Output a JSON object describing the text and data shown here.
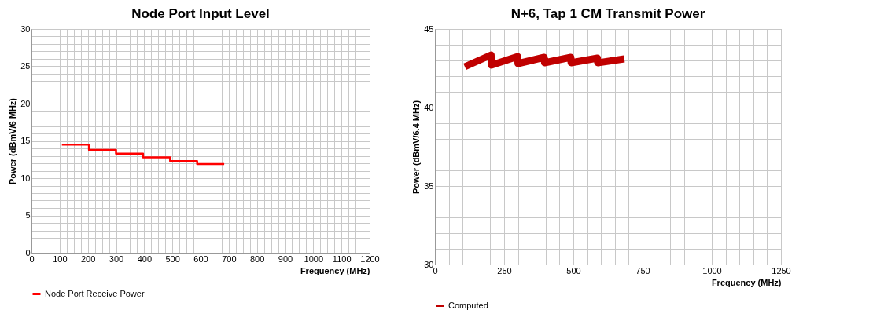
{
  "chart_data": [
    {
      "type": "step",
      "title": "Node Port Input Level",
      "xlabel": "Frequency (MHz)",
      "ylabel": "Power (dBmV/6 MHz)",
      "x": [
        108,
        204,
        300,
        396,
        492,
        588,
        684
      ],
      "series": [
        {
          "name": "Node Port Receive Power",
          "color": "#ff0000",
          "values": [
            14.5,
            13.8,
            13.3,
            12.8,
            12.3,
            11.9,
            11.9
          ]
        }
      ],
      "xlim": [
        0,
        1200
      ],
      "ylim": [
        0,
        30
      ],
      "xticks": [
        0,
        {
          "value": 25,
          "label": null
        },
        {
          "value": 50,
          "label": null
        },
        {
          "value": 75,
          "label": null
        },
        100,
        {
          "value": 125,
          "label": null
        },
        {
          "value": 150,
          "label": null
        },
        {
          "value": 175,
          "label": null
        },
        200,
        {
          "value": 225,
          "label": null
        },
        {
          "value": 250,
          "label": null
        },
        {
          "value": 275,
          "label": null
        },
        300,
        {
          "value": 325,
          "label": null
        },
        {
          "value": 350,
          "label": null
        },
        {
          "value": 375,
          "label": null
        },
        400,
        {
          "value": 425,
          "label": null
        },
        {
          "value": 450,
          "label": null
        },
        {
          "value": 475,
          "label": null
        },
        500,
        {
          "value": 525,
          "label": null
        },
        {
          "value": 550,
          "label": null
        },
        {
          "value": 575,
          "label": null
        },
        600,
        {
          "value": 625,
          "label": null
        },
        {
          "value": 650,
          "label": null
        },
        {
          "value": 675,
          "label": null
        },
        700,
        {
          "value": 725,
          "label": null
        },
        {
          "value": 750,
          "label": null
        },
        {
          "value": 775,
          "label": null
        },
        800,
        {
          "value": 825,
          "label": null
        },
        {
          "value": 850,
          "label": null
        },
        {
          "value": 875,
          "label": null
        },
        900,
        {
          "value": 925,
          "label": null
        },
        {
          "value": 950,
          "label": null
        },
        {
          "value": 975,
          "label": null
        },
        1000,
        {
          "value": 1025,
          "label": null
        },
        {
          "value": 1050,
          "label": null
        },
        {
          "value": 1075,
          "label": null
        },
        1100,
        {
          "value": 1125,
          "label": null
        },
        {
          "value": 1150,
          "label": null
        },
        {
          "value": 1175,
          "label": null
        },
        1200
      ],
      "yticks": [
        0,
        {
          "value": 1,
          "label": null
        },
        {
          "value": 2,
          "label": null
        },
        {
          "value": 3,
          "label": null
        },
        {
          "value": 4,
          "label": null
        },
        5,
        {
          "value": 6,
          "label": null
        },
        {
          "value": 7,
          "label": null
        },
        {
          "value": 8,
          "label": null
        },
        {
          "value": 9,
          "label": null
        },
        10,
        {
          "value": 11,
          "label": null
        },
        {
          "value": 12,
          "label": null
        },
        {
          "value": 13,
          "label": null
        },
        {
          "value": 14,
          "label": null
        },
        15,
        {
          "value": 16,
          "label": null
        },
        {
          "value": 17,
          "label": null
        },
        {
          "value": 18,
          "label": null
        },
        {
          "value": 19,
          "label": null
        },
        20,
        {
          "value": 21,
          "label": null
        },
        {
          "value": 22,
          "label": null
        },
        {
          "value": 23,
          "label": null
        },
        {
          "value": 24,
          "label": null
        },
        25,
        {
          "value": 26,
          "label": null
        },
        {
          "value": 27,
          "label": null
        },
        {
          "value": 28,
          "label": null
        },
        {
          "value": 29,
          "label": null
        },
        30
      ],
      "grid": true,
      "legend": "bottom"
    },
    {
      "type": "line",
      "title": "N+6, Tap 1 CM Transmit Power",
      "xlabel": "Frequency (MHz)",
      "ylabel": "Power (dBmV/6.4 MHz)",
      "x": [
        108,
        203,
        204,
        299,
        300,
        395,
        396,
        491,
        492,
        587,
        588,
        684
      ],
      "series": [
        {
          "name": "Computed",
          "color": "#c00000",
          "values": [
            42.6,
            43.35,
            42.7,
            43.25,
            42.8,
            43.2,
            42.85,
            43.2,
            42.85,
            43.15,
            42.85,
            43.1
          ]
        }
      ],
      "xlim": [
        0,
        1250
      ],
      "ylim": [
        30,
        45
      ],
      "xticks": [
        0,
        {
          "value": 50,
          "label": null
        },
        {
          "value": 100,
          "label": null
        },
        {
          "value": 150,
          "label": null
        },
        {
          "value": 200,
          "label": null
        },
        250,
        {
          "value": 300,
          "label": null
        },
        {
          "value": 350,
          "label": null
        },
        {
          "value": 400,
          "label": null
        },
        {
          "value": 450,
          "label": null
        },
        500,
        {
          "value": 550,
          "label": null
        },
        {
          "value": 600,
          "label": null
        },
        {
          "value": 650,
          "label": null
        },
        {
          "value": 700,
          "label": null
        },
        750,
        {
          "value": 800,
          "label": null
        },
        {
          "value": 850,
          "label": null
        },
        {
          "value": 900,
          "label": null
        },
        {
          "value": 950,
          "label": null
        },
        1000,
        {
          "value": 1050,
          "label": null
        },
        {
          "value": 1100,
          "label": null
        },
        {
          "value": 1150,
          "label": null
        },
        {
          "value": 1200,
          "label": null
        },
        1250
      ],
      "yticks": [
        30,
        {
          "value": 31,
          "label": null
        },
        {
          "value": 32,
          "label": null
        },
        {
          "value": 33,
          "label": null
        },
        {
          "value": 34,
          "label": null
        },
        35,
        {
          "value": 36,
          "label": null
        },
        {
          "value": 37,
          "label": null
        },
        {
          "value": 38,
          "label": null
        },
        {
          "value": 39,
          "label": null
        },
        40,
        {
          "value": 41,
          "label": null
        },
        {
          "value": 42,
          "label": null
        },
        {
          "value": 43,
          "label": null
        },
        {
          "value": 44,
          "label": null
        },
        45
      ],
      "grid": true,
      "legend": "bottom"
    }
  ]
}
